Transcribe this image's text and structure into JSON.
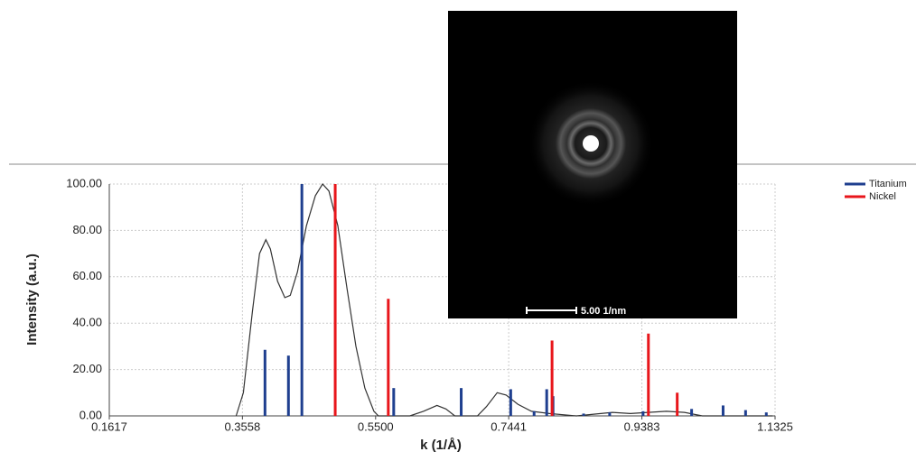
{
  "chart_data": {
    "type": "stick",
    "xlabel": "k (1/Å)",
    "ylabel": "Intensity (a.u.)",
    "xlim": [
      0.1617,
      1.1325
    ],
    "xticks": [
      0.1617,
      0.3558,
      {
        "value": 0.55,
        "label": "0.5500"
      },
      0.7441,
      0.9383,
      1.1325
    ],
    "ylim": [
      0,
      100
    ],
    "yticks": [
      {
        "value": 0,
        "label": "0.00"
      },
      {
        "value": 20,
        "label": "20.00"
      },
      {
        "value": 40,
        "label": "40.00"
      },
      {
        "value": 60,
        "label": "60.00"
      },
      {
        "value": 80,
        "label": "80.00"
      },
      {
        "value": 100,
        "label": "100.00"
      }
    ],
    "grid": true,
    "legend": "top-right",
    "series": [
      {
        "name": "Titanium",
        "color": "#1f3f8f",
        "x": [
          0.3887,
          0.4229,
          0.4425,
          0.5764,
          0.6748,
          0.747,
          0.7811,
          0.7995,
          0.8087,
          0.8533,
          0.8913,
          0.94,
          1.0108,
          1.0567,
          1.0895,
          1.1197
        ],
        "values": [
          28.5,
          26,
          100,
          12,
          12,
          11.5,
          2,
          11.5,
          8.5,
          1,
          1.5,
          2,
          3,
          4.5,
          2.5,
          1.5
        ]
      },
      {
        "name": "Nickel",
        "color": "#e8161b",
        "x": [
          0.4911,
          0.5685,
          0.8073,
          0.9478,
          0.9898
        ],
        "values": [
          100,
          50.5,
          32.5,
          35.5,
          10
        ]
      }
    ],
    "line": {
      "color": "#333333",
      "x": [
        0.3467,
        0.3572,
        0.3704,
        0.3808,
        0.39,
        0.3966,
        0.4071,
        0.4176,
        0.4255,
        0.436,
        0.4491,
        0.4622,
        0.4727,
        0.4819,
        0.495,
        0.5082,
        0.5213,
        0.5344,
        0.5475,
        0.5541,
        0.6,
        0.6197,
        0.6394,
        0.6525,
        0.6656,
        0.6985,
        0.7116,
        0.7273,
        0.7404,
        0.7575,
        0.7772,
        0.8034,
        0.8428,
        0.8953,
        0.9215,
        0.974,
        1.0003,
        1.0265,
        1.1289
      ],
      "values": [
        0,
        10,
        45,
        70,
        76,
        72,
        58,
        51,
        52,
        62,
        82,
        95,
        100,
        97,
        82,
        55,
        30,
        12,
        2,
        0,
        0,
        2,
        4.5,
        3,
        0,
        0,
        4,
        10,
        9,
        5,
        2,
        1,
        0,
        1.5,
        1,
        2,
        1.5,
        0,
        0
      ]
    },
    "inset_label": "5.00 1/nm"
  }
}
